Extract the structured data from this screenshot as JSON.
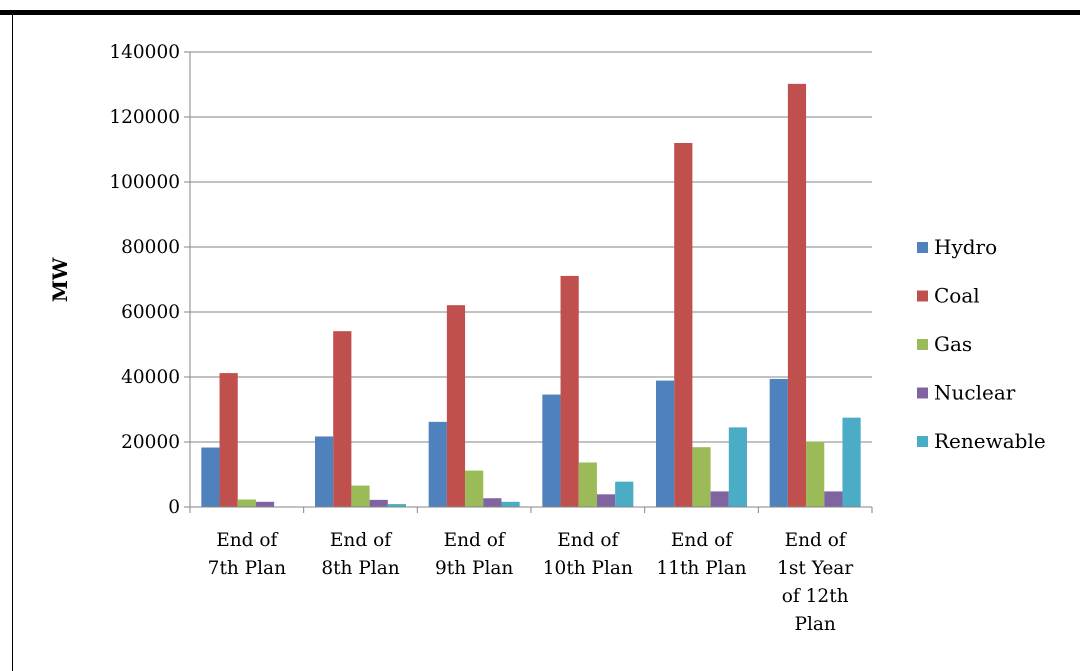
{
  "chart_data": {
    "type": "bar",
    "title": "",
    "xlabel": "",
    "ylabel": "MW",
    "ylim": [
      0,
      140000
    ],
    "yticks": [
      0,
      20000,
      40000,
      60000,
      80000,
      100000,
      120000,
      140000
    ],
    "grid": "horizontal",
    "legend_position": "right",
    "categories": [
      [
        "End of",
        "7th Plan"
      ],
      [
        "End of",
        "8th Plan"
      ],
      [
        "End of",
        "9th Plan"
      ],
      [
        "End of",
        "10th Plan"
      ],
      [
        "End of",
        "11th Plan"
      ],
      [
        "End of",
        "1st Year",
        "of 12th",
        "Plan"
      ]
    ],
    "series": [
      {
        "name": "Hydro",
        "color": "#4F81BD",
        "values": [
          18300,
          21700,
          26200,
          34600,
          38900,
          39400
        ]
      },
      {
        "name": "Coal",
        "color": "#C0504D",
        "values": [
          41200,
          54100,
          62100,
          71100,
          112000,
          130200
        ]
      },
      {
        "name": "Gas",
        "color": "#9BBB59",
        "values": [
          2300,
          6600,
          11200,
          13700,
          18400,
          20100
        ]
      },
      {
        "name": "Nuclear",
        "color": "#8064A2",
        "values": [
          1600,
          2200,
          2700,
          3900,
          4800,
          4800
        ]
      },
      {
        "name": "Renewable",
        "color": "#4BACC6",
        "values": [
          20,
          900,
          1600,
          7800,
          24500,
          27500
        ]
      }
    ]
  }
}
